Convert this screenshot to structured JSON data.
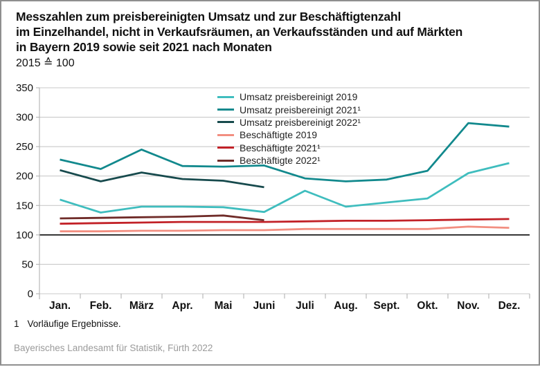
{
  "header": {
    "title_line1": "Messzahlen zum preisbereinigten Umsatz und zur Beschäftigtenzahl",
    "title_line2": "im Einzelhandel, nicht in Verkaufsräumen, an Verkaufsständen und auf Märkten",
    "title_line3": "in Bayern 2019 sowie seit 2021 nach Monaten",
    "subtitle": "2015 ≙ 100"
  },
  "chart_data": {
    "type": "line",
    "title": "Messzahlen zum preisbereinigten Umsatz und zur Beschäftigtenzahl im Einzelhandel, nicht in Verkaufsräumen, an Verkaufsständen und auf Märkten in Bayern 2019 sowie seit 2021 nach Monaten",
    "subtitle": "2015 ≙ 100",
    "xlabel": "",
    "ylabel": "",
    "categories": [
      "Jan.",
      "Feb.",
      "März",
      "Apr.",
      "Mai",
      "Juni",
      "Juli",
      "Aug.",
      "Sept.",
      "Okt.",
      "Nov.",
      "Dez."
    ],
    "series": [
      {
        "name": "Umsatz preisbereinigt 2019",
        "color": "#3fbdbe",
        "values": [
          160,
          138,
          148,
          148,
          147,
          139,
          175,
          148,
          155,
          162,
          205,
          222
        ]
      },
      {
        "name": "Umsatz preisbereinigt 2021¹",
        "color": "#12898d",
        "values": [
          228,
          212,
          245,
          217,
          216,
          218,
          196,
          191,
          194,
          209,
          290,
          284
        ]
      },
      {
        "name": "Umsatz preisbereinigt 2022¹",
        "color": "#174a4d",
        "values": [
          210,
          191,
          206,
          195,
          192,
          181,
          null,
          null,
          null,
          null,
          null,
          null
        ]
      },
      {
        "name": "Beschäftigte 2019",
        "color": "#f28e80",
        "values": [
          106,
          106,
          107,
          107,
          108,
          108,
          110,
          110,
          110,
          110,
          114,
          112
        ]
      },
      {
        "name": "Beschäftigte 2021¹",
        "color": "#c22127",
        "values": [
          119,
          120,
          121,
          122,
          122,
          122,
          123,
          124,
          124,
          125,
          126,
          127
        ]
      },
      {
        "name": "Beschäftigte 2022¹",
        "color": "#6f2b28",
        "values": [
          128,
          129,
          130,
          131,
          133,
          125,
          null,
          null,
          null,
          null,
          null,
          null
        ]
      }
    ],
    "ylim": [
      0,
      350
    ],
    "yticks": [
      0,
      50,
      100,
      150,
      200,
      250,
      300,
      350
    ],
    "reference_line": 100,
    "grid": true,
    "legend_position": "top-center-inside"
  },
  "footer": {
    "footnote_marker": "1",
    "footnote_text": "Vorläufige Ergebnisse.",
    "source": "Bayerisches Landesamt für Statistik, Fürth 2022"
  },
  "colors": {
    "grid": "#c9c9c9",
    "reference_line": "#1a1a1a",
    "axis": "#b2b2b2",
    "text": "#111111",
    "source_text": "#9a9a9a"
  }
}
